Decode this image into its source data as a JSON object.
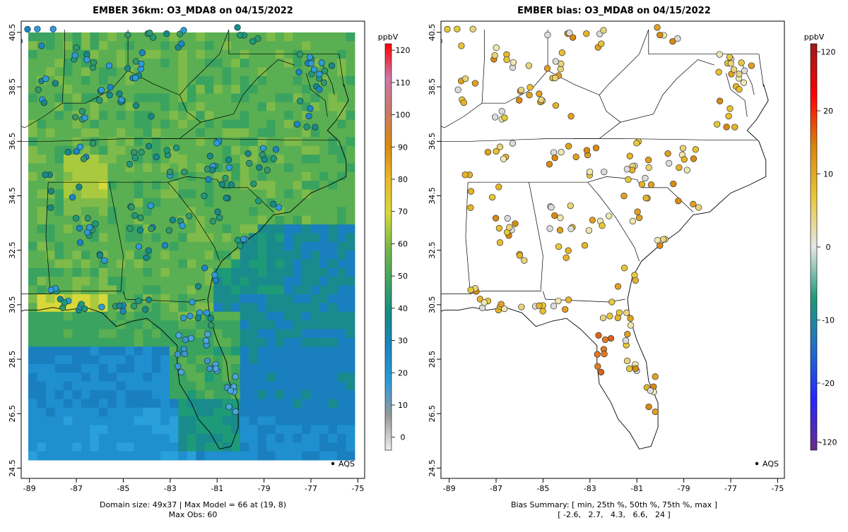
{
  "left_panel": {
    "title": "EMBER 36km: O3_MDA8 on 04/15/2022",
    "caption_line1": "Domain size: 49x37 | Max Model = 66 at (19, 8)",
    "caption_line2": "Max Obs: 60",
    "legend_label": "AQS",
    "colorbar": {
      "unit": "ppbV",
      "min": -4,
      "max": 122,
      "ticks": [
        "0",
        "10",
        "20",
        "30",
        "40",
        "50",
        "60",
        "70",
        "80",
        "90",
        "100",
        "110",
        "120"
      ],
      "stops": [
        "#eeeeee",
        "#9a9a9a",
        "#2e9bd9",
        "#1a86c4",
        "#168a86",
        "#3fa55e",
        "#79b84a",
        "#d6d93a",
        "#e9b72a",
        "#d98a10",
        "#c77a6a",
        "#cc77a8",
        "#ff0000"
      ]
    },
    "longitude_ticks": [
      "-89",
      "-87",
      "-85",
      "-83",
      "-81",
      "-79",
      "-77",
      "-75"
    ],
    "latitude_ticks": [
      "40.5",
      "38.5",
      "36.5",
      "34.5",
      "32.5",
      "30.5",
      "28.5",
      "26.5",
      "24.5"
    ]
  },
  "right_panel": {
    "title": "EMBER bias: O3_MDA8 on 04/15/2022",
    "caption_line1": "Bias Summary: [ min, 25th %, 50th %, 75th %, max ]",
    "caption_line2": "[ -2.6,   2.7,   4.3,   6.6,   24 ]",
    "legend_label": "AQS",
    "colorbar": {
      "unit": "ppbV",
      "min": -124,
      "max": 124,
      "ticks": [
        "-120",
        "-20",
        "-10",
        "0",
        "10",
        "20",
        "120"
      ],
      "stops": [
        "#6a2c8c",
        "#2626ff",
        "#1f6fc9",
        "#1f9a7a",
        "#e6e6e6",
        "#e8c83a",
        "#d9820c",
        "#ff0000",
        "#9b1b1b"
      ]
    },
    "longitude_ticks": [
      "-89",
      "-87",
      "-85",
      "-83",
      "-81",
      "-79",
      "-77",
      "-75"
    ],
    "latitude_ticks": [
      "40.5",
      "38.5",
      "36.5",
      "34.5",
      "32.5",
      "30.5",
      "28.5",
      "26.5",
      "24.5"
    ]
  }
}
